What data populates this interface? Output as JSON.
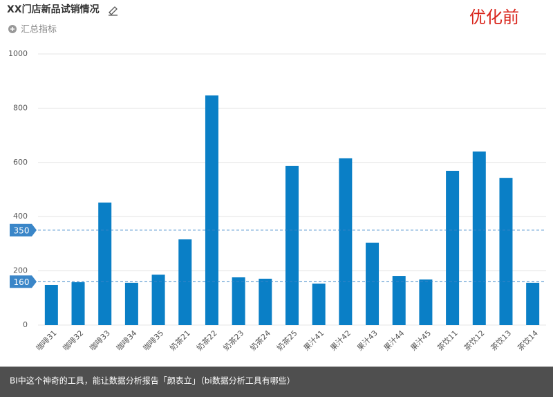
{
  "chart_data": {
    "type": "bar",
    "title": "XX门店新品试销情况",
    "summary_button": "汇总指标",
    "badge": "优化前",
    "categories": [
      "咖啡31",
      "咖啡32",
      "咖啡33",
      "咖啡34",
      "咖啡35",
      "奶茶21",
      "奶茶22",
      "奶茶23",
      "奶茶24",
      "奶茶25",
      "果汁41",
      "果汁42",
      "果汁43",
      "果汁44",
      "果汁45",
      "茶饮11",
      "茶饮12",
      "茶饮13",
      "茶饮14"
    ],
    "values": [
      148,
      158,
      452,
      156,
      186,
      316,
      847,
      176,
      171,
      587,
      153,
      615,
      304,
      181,
      168,
      569,
      640,
      543,
      156
    ],
    "color": "#0a7fc6",
    "ylim": [
      0,
      1000
    ],
    "yticks": [
      0,
      200,
      400,
      600,
      800,
      1000
    ],
    "grid": true,
    "reference_lines": [
      {
        "value": 350
      },
      {
        "value": 160
      }
    ],
    "caption": "BI中这个神奇的工具，能让数据分析报告「颜表立」（bi数据分析工具有哪些）"
  }
}
